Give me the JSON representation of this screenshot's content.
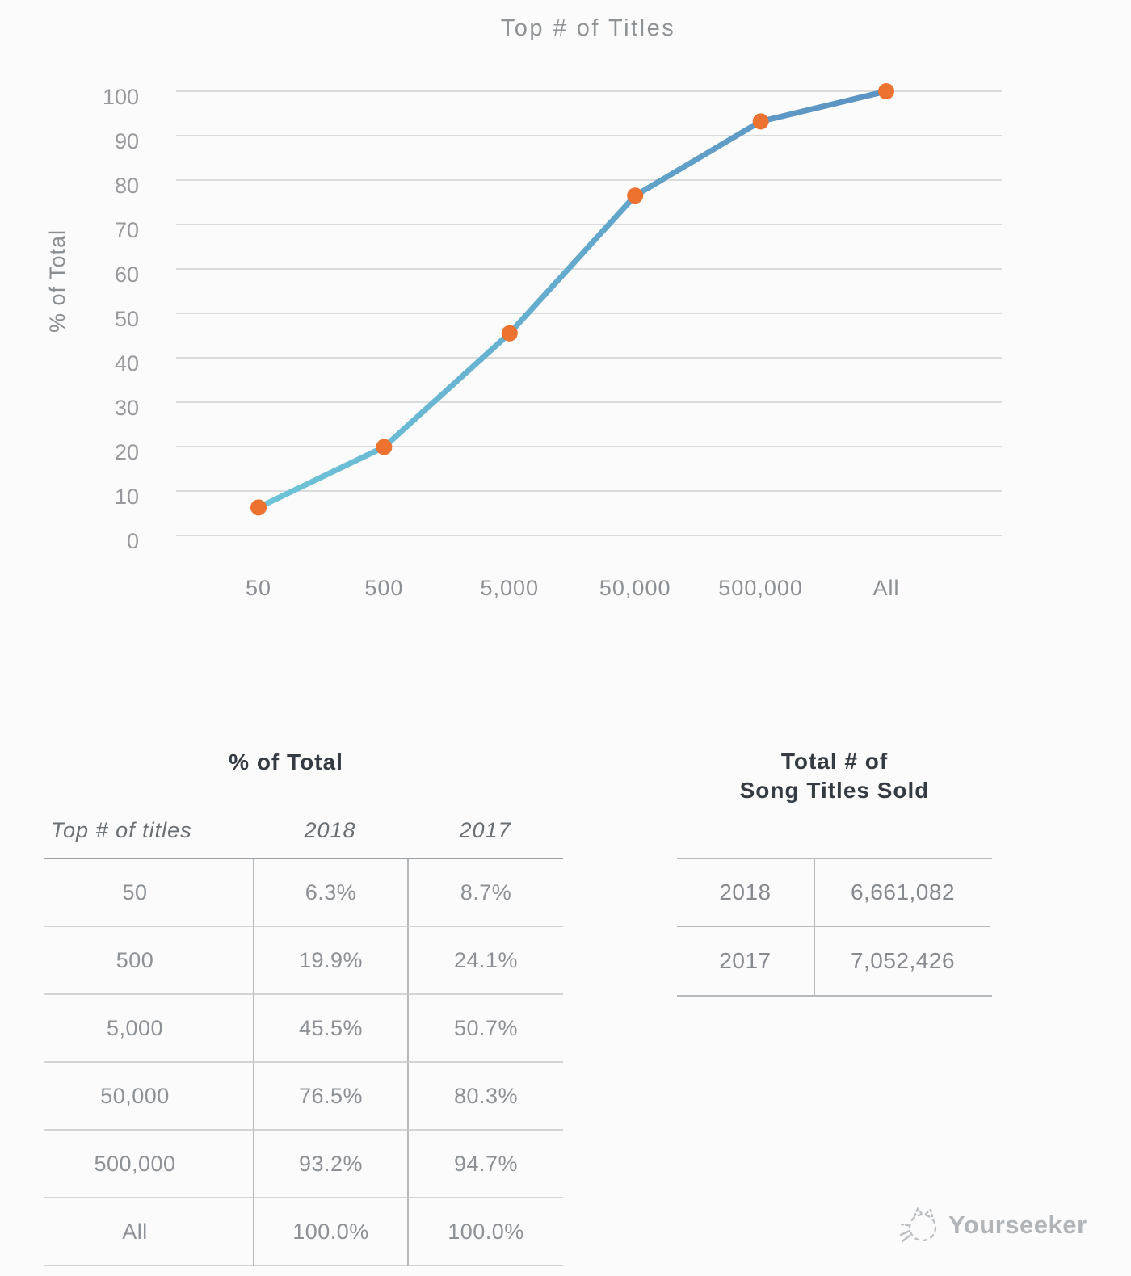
{
  "page": {
    "background": "#fbfbfb"
  },
  "chart_data": {
    "type": "line",
    "title": "Top # of Titles",
    "xlabel": "",
    "ylabel": "% of Total",
    "categories": [
      "50",
      "500",
      "5,000",
      "50,000",
      "500,000",
      "All"
    ],
    "yticks": [
      0,
      10,
      20,
      30,
      40,
      50,
      60,
      70,
      80,
      90,
      100
    ],
    "ylim": [
      0,
      100
    ],
    "grid": true,
    "legend": false,
    "plotted_series": "2018",
    "series": [
      {
        "name": "2018",
        "values": [
          6.3,
          19.9,
          45.5,
          76.5,
          93.2,
          100.0
        ]
      },
      {
        "name": "2017",
        "values": [
          8.7,
          24.1,
          50.7,
          80.3,
          94.7,
          100.0
        ]
      }
    ],
    "totals": {
      "label": "Total # of Song Titles Sold",
      "2018": "6,661,082",
      "2017": "7,052,426"
    },
    "style": {
      "grid_color": "#dadbdc",
      "line_gradient_start": "#6ec5d9",
      "line_gradient_end": "#5b92c2",
      "line_width": 7,
      "marker_color": "#ed7230",
      "marker_radius": 10
    }
  },
  "left_table": {
    "title": "% of Total",
    "columns": [
      "Top # of titles",
      "2018",
      "2017"
    ],
    "rows": [
      [
        "50",
        "6.3%",
        "8.7%"
      ],
      [
        "500",
        "19.9%",
        "24.1%"
      ],
      [
        "5,000",
        "45.5%",
        "50.7%"
      ],
      [
        "50,000",
        "76.5%",
        "80.3%"
      ],
      [
        "500,000",
        "93.2%",
        "94.7%"
      ],
      [
        "All",
        "100.0%",
        "100.0%"
      ]
    ]
  },
  "right_table": {
    "title_line1": "Total # of",
    "title_line2": "Song Titles Sold",
    "rows": [
      [
        "2018",
        "6,661,082"
      ],
      [
        "2017",
        "7,052,426"
      ]
    ]
  },
  "watermark": {
    "text": "Yourseeker"
  }
}
